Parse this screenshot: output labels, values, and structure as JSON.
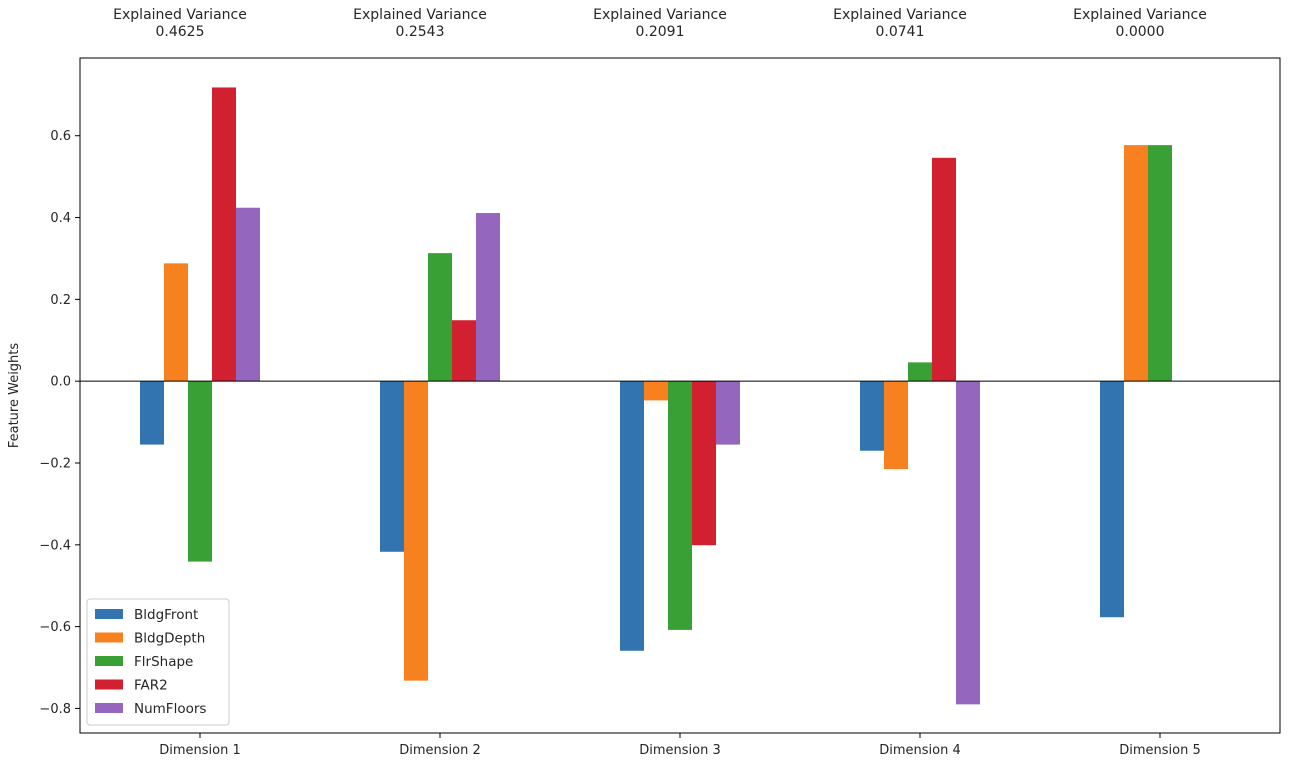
{
  "chart_data": {
    "type": "bar",
    "categories": [
      "Dimension 1",
      "Dimension 2",
      "Dimension 3",
      "Dimension 4",
      "Dimension 5"
    ],
    "ylabel": "Feature Weights",
    "ylim": [
      -0.86,
      0.79
    ],
    "yticks": [
      -0.8,
      -0.6,
      -0.4,
      -0.2,
      0.0,
      0.2,
      0.4,
      0.6
    ],
    "ytick_labels": [
      "−0.8",
      "−0.6",
      "−0.4",
      "−0.2",
      "0.0",
      "0.2",
      "0.4",
      "0.6"
    ],
    "grid": false,
    "legend_position": "lower-left",
    "explained_variance_title": "Explained Variance",
    "explained_variance": [
      "0.4625",
      "0.2543",
      "0.2091",
      "0.0741",
      "0.0000"
    ],
    "series": [
      {
        "name": "BldgFront",
        "color": "#3274b0",
        "values": [
          -0.155,
          -0.417,
          -0.659,
          -0.17,
          -0.577
        ]
      },
      {
        "name": "BldgDepth",
        "color": "#f7801f",
        "values": [
          0.288,
          -0.732,
          -0.047,
          -0.215,
          0.577
        ]
      },
      {
        "name": "FlrShape",
        "color": "#38a035",
        "values": [
          -0.441,
          0.313,
          -0.608,
          0.046,
          0.577
        ]
      },
      {
        "name": "FAR2",
        "color": "#d12130",
        "values": [
          0.718,
          0.149,
          -0.401,
          0.546,
          0.0
        ]
      },
      {
        "name": "NumFloors",
        "color": "#9566bd",
        "values": [
          0.424,
          0.411,
          -0.155,
          -0.79,
          0.0
        ]
      }
    ]
  }
}
